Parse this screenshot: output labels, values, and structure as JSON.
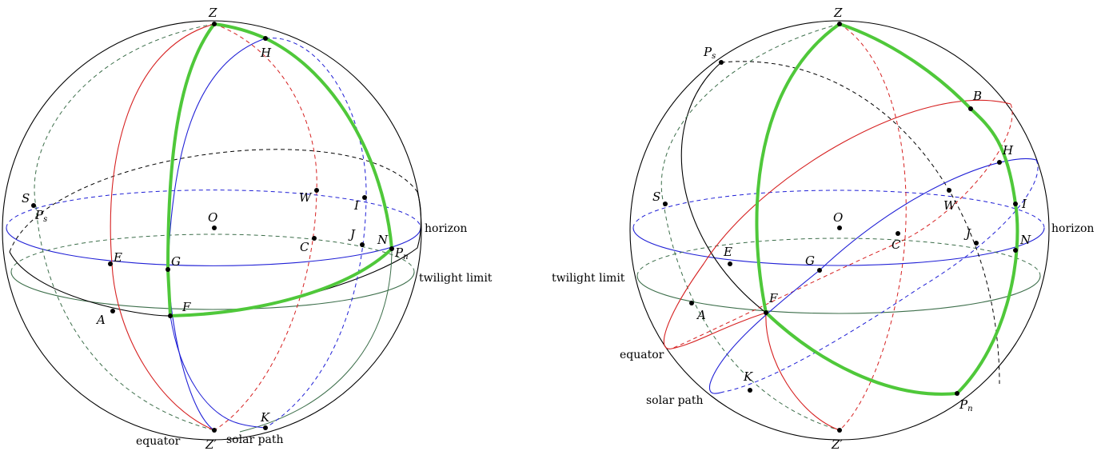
{
  "left_diagram": {
    "points": {
      "Z": "Z",
      "H": "H",
      "S": "S",
      "Ps": "P",
      "Ps_sub": "s",
      "W": "W",
      "I": "I",
      "O": "O",
      "C": "C",
      "J": "J",
      "N": "N",
      "Pn": "P",
      "Pn_sub": "n",
      "E": "E",
      "G": "G",
      "A": "A",
      "F": "F",
      "K": "K",
      "Zp": "Z′"
    },
    "labels": {
      "horizon": "horizon",
      "twilight": "twilight limit",
      "equator": "equator",
      "solar_path": "solar path"
    }
  },
  "right_diagram": {
    "points": {
      "Z": "Z",
      "Ps": "P",
      "Ps_sub": "s",
      "B": "B",
      "H": "H",
      "S": "S",
      "W": "W",
      "I": "I",
      "O": "O",
      "C": "C",
      "J": "J",
      "N": "N",
      "E": "E",
      "G": "G",
      "F": "F",
      "A": "A",
      "K": "K",
      "Pn": "P",
      "Pn_sub": "n",
      "Zp": "Z′"
    },
    "labels": {
      "horizon": "horizon",
      "twilight": "twilight limit",
      "equator": "equator",
      "solar_path": "solar path"
    }
  },
  "colors": {
    "outline": "#000000",
    "horizon": "#1f1fd6",
    "equator": "#d62020",
    "solar_path": "#1f1fd6",
    "twilight": "#3c6e4a",
    "triangle": "#4fc83a"
  }
}
